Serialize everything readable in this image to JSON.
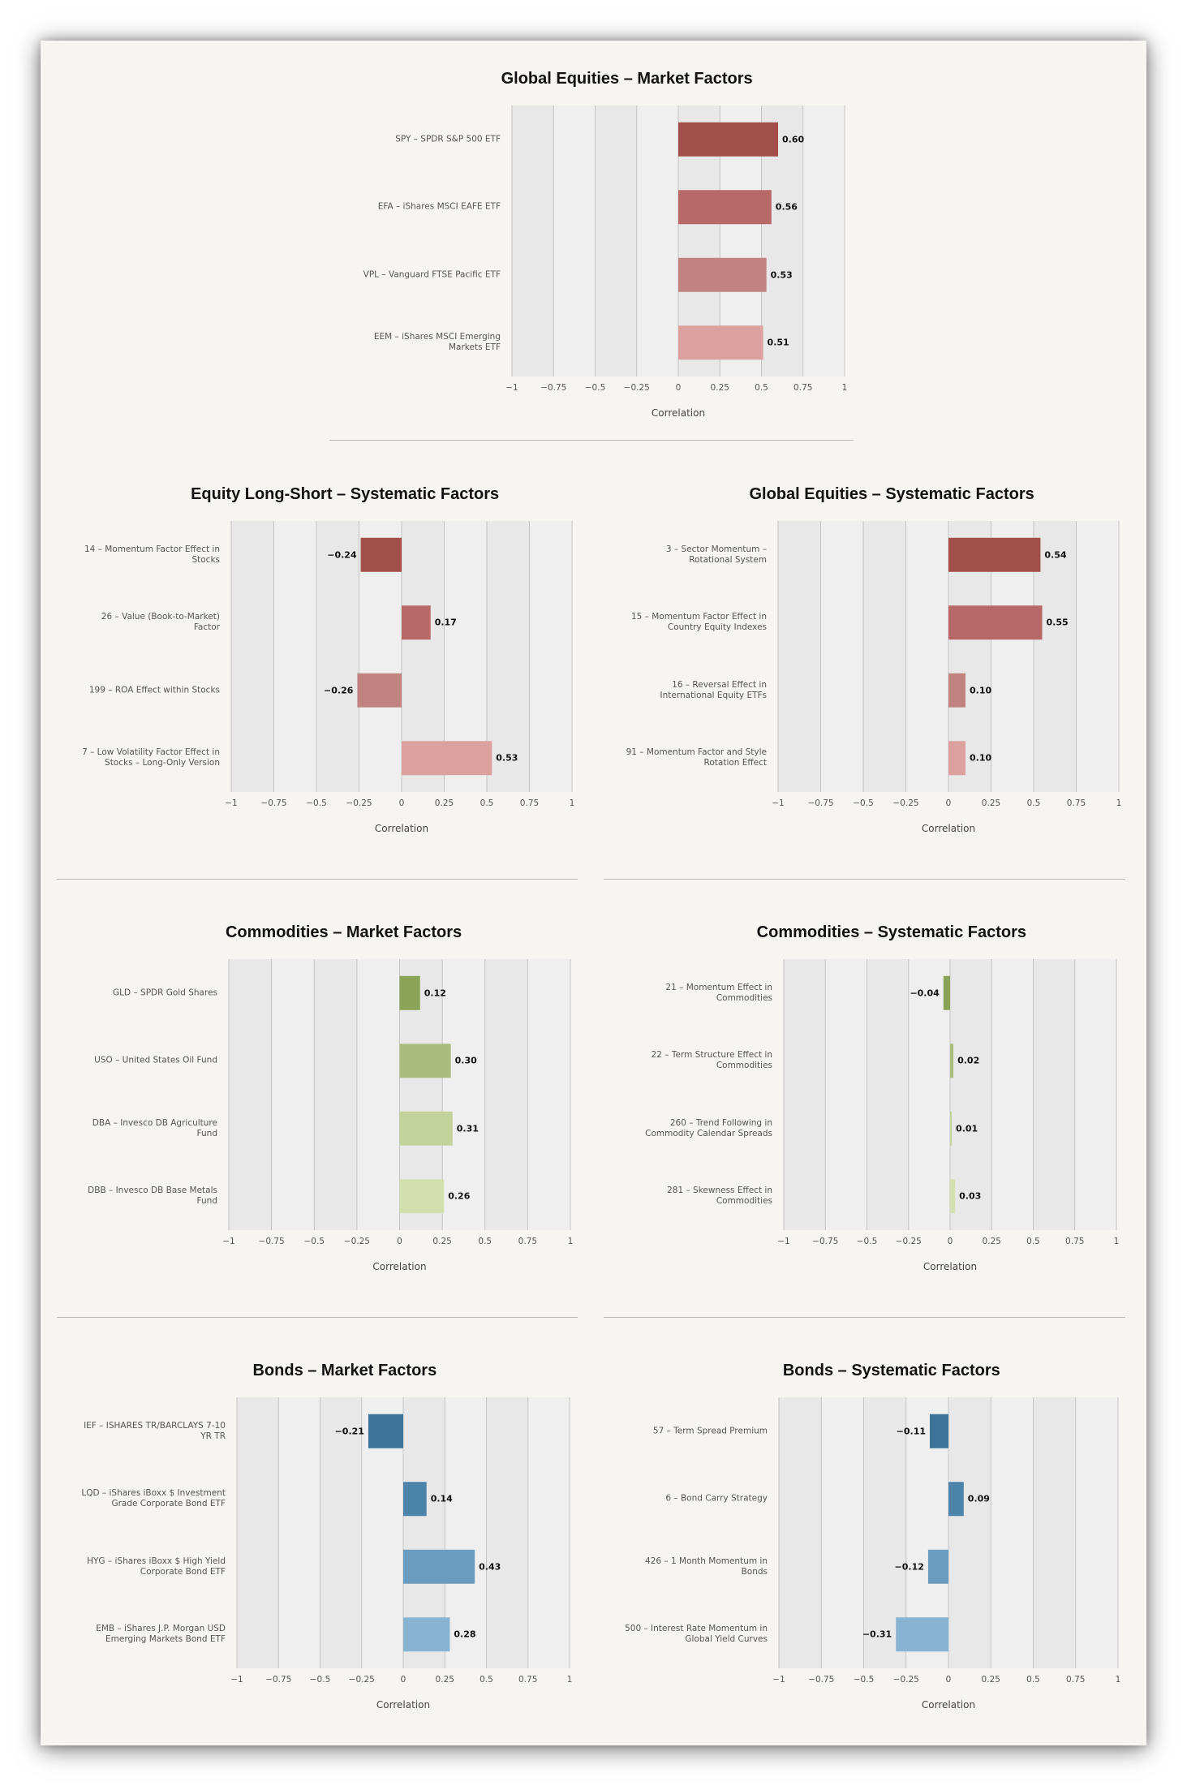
{
  "chart_data": [
    {
      "type": "bar",
      "orientation": "horizontal",
      "title": "Global Equities – Market Factors",
      "categories": [
        "SPY – SPDR S&P 500 ETF",
        "EFA – iShares MSCI EAFE ETF",
        "VPL – Vanguard FTSE Pacific ETF",
        "EEM – iShares MSCI Emerging Markets ETF"
      ],
      "values": [
        0.6,
        0.56,
        0.53,
        0.51
      ],
      "value_labels": [
        "0.60",
        "0.56",
        "0.53",
        "0.51"
      ],
      "xlabel": "Correlation",
      "xlim": [
        -1,
        1
      ],
      "xticks": [
        "−1",
        "−0.75",
        "−0.5",
        "−0.25",
        "0",
        "0.25",
        "0.5",
        "0.75",
        "1"
      ],
      "colors": [
        "#a24e4b",
        "#b86867",
        "#c18380",
        "#dca19f"
      ],
      "grid": true
    },
    {
      "type": "bar",
      "orientation": "horizontal",
      "title": "Equity Long-Short – Systematic Factors",
      "categories": [
        "14 – Momentum Factor Effect in Stocks",
        "26 – Value (Book-to-Market) Factor",
        "199 – ROA Effect within Stocks",
        "7 – Low Volatility Factor Effect in Stocks – Long-Only Version"
      ],
      "values": [
        -0.24,
        0.17,
        -0.26,
        0.53
      ],
      "value_labels": [
        "−0.24",
        "0.17",
        "−0.26",
        "0.53"
      ],
      "xlabel": "Correlation",
      "xlim": [
        -1,
        1
      ],
      "xticks": [
        "−1",
        "−0.75",
        "−0.5",
        "−0.25",
        "0",
        "0.25",
        "0.5",
        "0.75",
        "1"
      ],
      "colors": [
        "#a24e4b",
        "#b86867",
        "#c18380",
        "#dca19f"
      ],
      "grid": true
    },
    {
      "type": "bar",
      "orientation": "horizontal",
      "title": "Global Equities – Systematic Factors",
      "categories": [
        "3 – Sector Momentum – Rotational System",
        "15 – Momentum Factor Effect in Country Equity Indexes",
        "16 – Reversal Effect in International Equity ETFs",
        "91 – Momentum Factor and Style Rotation Effect"
      ],
      "values": [
        0.54,
        0.55,
        0.1,
        0.1
      ],
      "value_labels": [
        "0.54",
        "0.55",
        "0.10",
        "0.10"
      ],
      "xlabel": "Correlation",
      "xlim": [
        -1,
        1
      ],
      "xticks": [
        "−1",
        "−0.75",
        "−0.5",
        "−0.25",
        "0",
        "0.25",
        "0.5",
        "0.75",
        "1"
      ],
      "colors": [
        "#a24e4b",
        "#b86867",
        "#c18380",
        "#dca19f"
      ],
      "grid": true
    },
    {
      "type": "bar",
      "orientation": "horizontal",
      "title": "Commodities – Market Factors",
      "categories": [
        "GLD – SPDR Gold Shares",
        "USO – United States Oil Fund",
        "DBA – Invesco DB Agriculture Fund",
        "DBB – Invesco DB Base Metals Fund"
      ],
      "values": [
        0.12,
        0.3,
        0.31,
        0.26
      ],
      "value_labels": [
        "0.12",
        "0.30",
        "0.31",
        "0.26"
      ],
      "xlabel": "Correlation",
      "xlim": [
        -1,
        1
      ],
      "xticks": [
        "−1",
        "−0.75",
        "−0.5",
        "−0.25",
        "0",
        "0.25",
        "0.5",
        "0.75",
        "1"
      ],
      "colors": [
        "#8aa356",
        "#aabd7d",
        "#c2d29a",
        "#d3dfae"
      ],
      "grid": true
    },
    {
      "type": "bar",
      "orientation": "horizontal",
      "title": "Commodities – Systematic Factors",
      "categories": [
        "21 – Momentum Effect in Commodities",
        "22 – Term Structure Effect in Commodities",
        "260 – Trend Following in Commodity Calendar Spreads",
        "281 – Skewness Effect in Commodities"
      ],
      "values": [
        -0.04,
        0.02,
        0.01,
        0.03
      ],
      "value_labels": [
        "−0.04",
        "0.02",
        "0.01",
        "0.03"
      ],
      "xlabel": "Correlation",
      "xlim": [
        -1,
        1
      ],
      "xticks": [
        "−1",
        "−0.75",
        "−0.5",
        "−0.25",
        "0",
        "0.25",
        "0.5",
        "0.75",
        "1"
      ],
      "colors": [
        "#8aa356",
        "#aabd7d",
        "#c2d29a",
        "#d3dfae"
      ],
      "grid": true
    },
    {
      "type": "bar",
      "orientation": "horizontal",
      "title": "Bonds – Market Factors",
      "categories": [
        "IEF – ISHARES TR/BARCLAYS 7-10 YR TR",
        "LQD – iShares iBoxx $ Investment Grade Corporate Bond ETF",
        "HYG – iShares iBoxx $ High Yield Corporate Bond ETF",
        "EMB – iShares J.P. Morgan USD Emerging Markets Bond ETF"
      ],
      "values": [
        -0.21,
        0.14,
        0.43,
        0.28
      ],
      "value_labels": [
        "−0.21",
        "0.14",
        "0.43",
        "0.28"
      ],
      "xlabel": "Correlation",
      "xlim": [
        -1,
        1
      ],
      "xticks": [
        "−1",
        "−0.75",
        "−0.5",
        "−0.25",
        "0",
        "0.25",
        "0.5",
        "0.75",
        "1"
      ],
      "colors": [
        "#3d7399",
        "#4b83aa",
        "#6a9cc0",
        "#89b4d1"
      ],
      "grid": true
    },
    {
      "type": "bar",
      "orientation": "horizontal",
      "title": "Bonds – Systematic Factors",
      "categories": [
        "57 – Term Spread Premium",
        "6 – Bond Carry Strategy",
        "426 – 1 Month Momentum in Bonds",
        "500 – Interest Rate Momentum in Global Yield Curves"
      ],
      "values": [
        -0.11,
        0.09,
        -0.12,
        -0.31
      ],
      "value_labels": [
        "−0.11",
        "0.09",
        "−0.12",
        "−0.31"
      ],
      "xlabel": "Correlation",
      "xlim": [
        -1,
        1
      ],
      "xticks": [
        "−1",
        "−0.75",
        "−0.5",
        "−0.25",
        "0",
        "0.25",
        "0.5",
        "0.75",
        "1"
      ],
      "colors": [
        "#3d7399",
        "#4b83aa",
        "#6a9cc0",
        "#89b4d1"
      ],
      "grid": true
    }
  ]
}
